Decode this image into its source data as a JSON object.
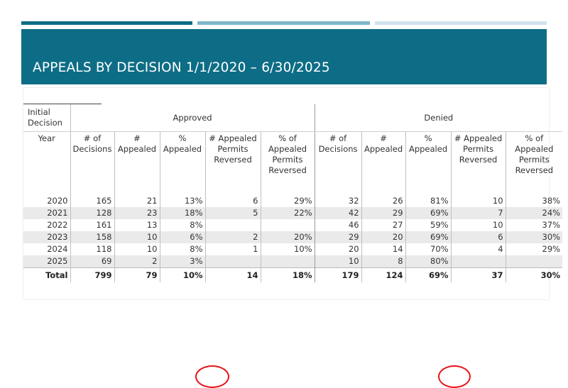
{
  "title": "APPEALS BY DECISION 1/1/2020 – 6/30/2025",
  "colors": {
    "accent": "#0e6d86",
    "highlight_circle": "#e8141b"
  },
  "table": {
    "corner_label": "Initial Decision",
    "groups": [
      "Approved",
      "Denied"
    ],
    "year_label": "Year",
    "col_headers": [
      "# of Decisions",
      "# Appealed",
      "% Appealed",
      "# Appealed Permits Reversed",
      "% of Appealed Permits Reversed"
    ],
    "rows": [
      {
        "year": "2020",
        "a": [
          "165",
          "21",
          "13%",
          "6",
          "29%"
        ],
        "d": [
          "32",
          "26",
          "81%",
          "10",
          "38%"
        ]
      },
      {
        "year": "2021",
        "a": [
          "128",
          "23",
          "18%",
          "5",
          "22%"
        ],
        "d": [
          "42",
          "29",
          "69%",
          "7",
          "24%"
        ]
      },
      {
        "year": "2022",
        "a": [
          "161",
          "13",
          "8%",
          "",
          ""
        ],
        "d": [
          "46",
          "27",
          "59%",
          "10",
          "37%"
        ]
      },
      {
        "year": "2023",
        "a": [
          "158",
          "10",
          "6%",
          "2",
          "20%"
        ],
        "d": [
          "29",
          "20",
          "69%",
          "6",
          "30%"
        ]
      },
      {
        "year": "2024",
        "a": [
          "118",
          "10",
          "8%",
          "1",
          "10%"
        ],
        "d": [
          "20",
          "14",
          "70%",
          "4",
          "29%"
        ]
      },
      {
        "year": "2025",
        "a": [
          "69",
          "2",
          "3%",
          "",
          ""
        ],
        "d": [
          "10",
          "8",
          "80%",
          "",
          ""
        ]
      }
    ],
    "total": {
      "label": "Total",
      "a": [
        "799",
        "79",
        "10%",
        "14",
        "18%"
      ],
      "d": [
        "179",
        "124",
        "69%",
        "37",
        "30%"
      ]
    }
  }
}
